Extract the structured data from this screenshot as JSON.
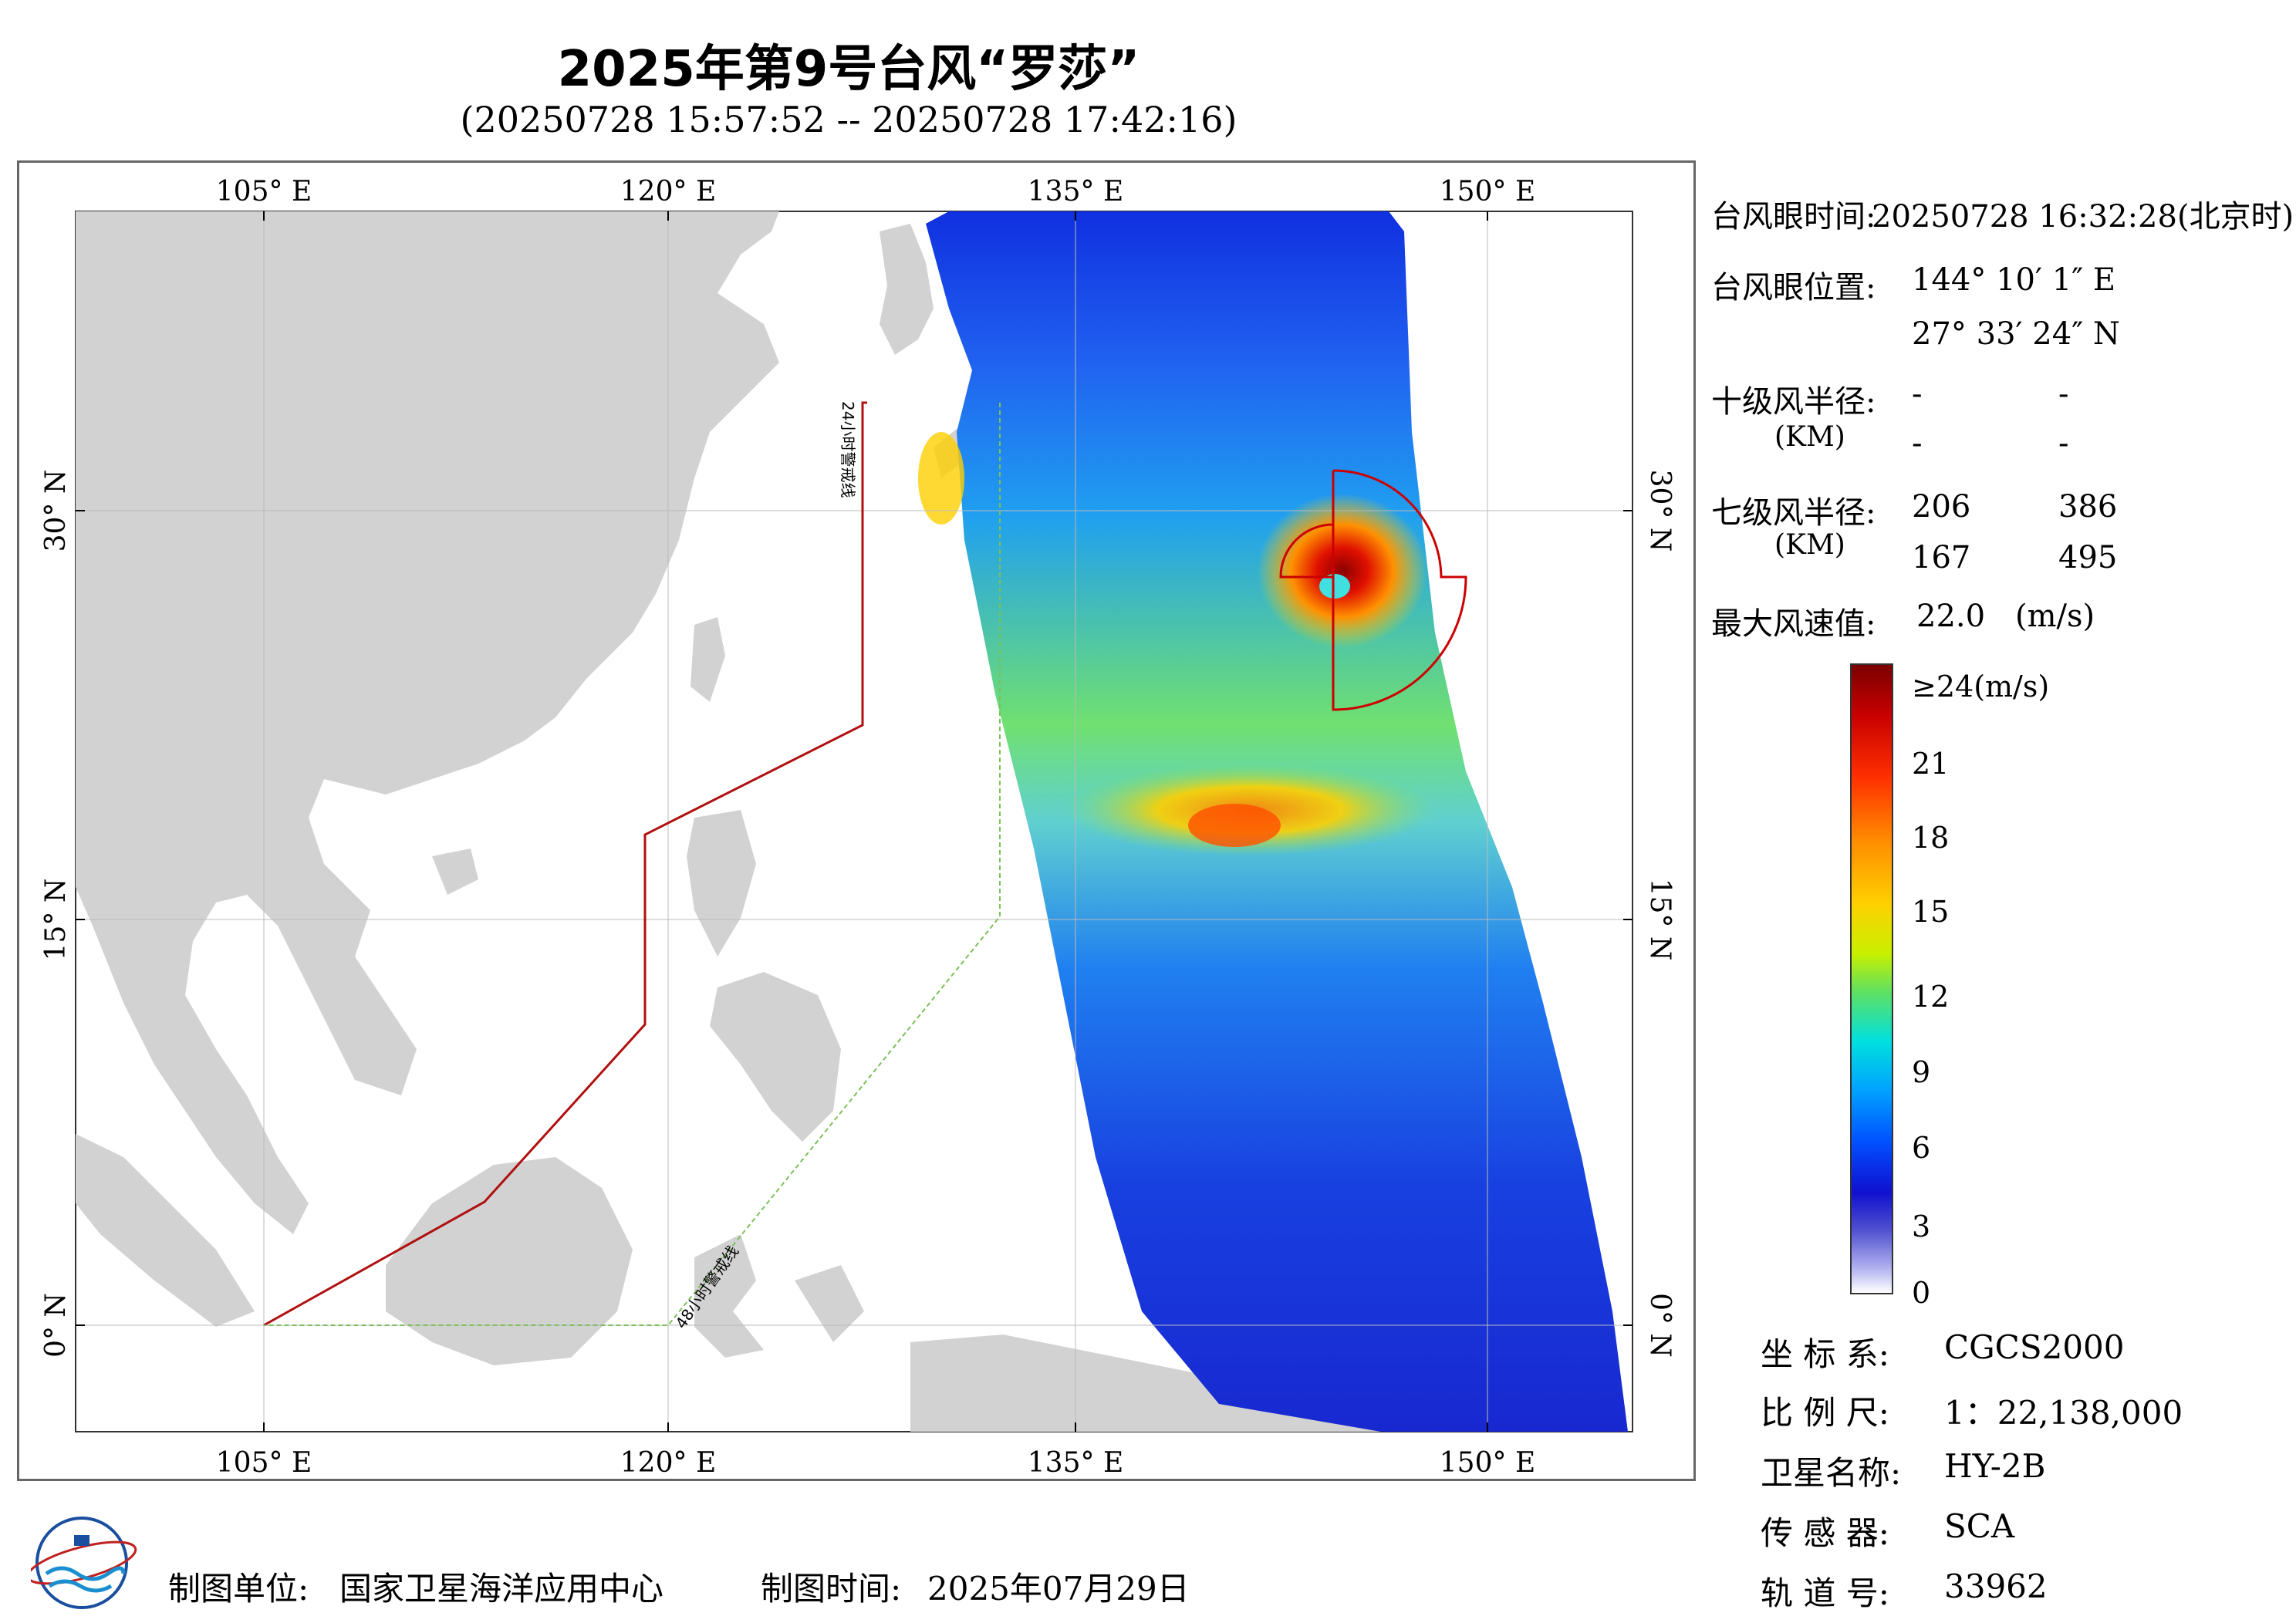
{
  "title": "2025年第9号台风“罗莎”",
  "subtitle": "(20250728 15:57:52 -- 20250728 17:42:16)",
  "map": {
    "lon_ticks": [
      "105° E",
      "120° E",
      "135° E",
      "150° E"
    ],
    "lat_ticks": [
      "0° N",
      "15° N",
      "30° N"
    ],
    "line_24h_label": "24小时警戒线",
    "line_48h_label": "48小时警戒线",
    "colors": {
      "land": "#d2d2d2",
      "sea": "#ffffff",
      "line_24h": "#b01010",
      "line_48h": "#7cc05a",
      "radius_line": "#cc0000"
    }
  },
  "info": {
    "eye_time_label": "台风眼时间:",
    "eye_time_value": "20250728 16:32:28(北京时)",
    "eye_pos_label": "台风眼位置:",
    "eye_lon": "144° 10′ 1″ E",
    "eye_lat": "27° 33′ 24″ N",
    "r10_label": "十级风半径:",
    "r10_unit": "(KM)",
    "r10_values": [
      "-",
      "-",
      "-",
      "-"
    ],
    "r7_label": "七级风半径:",
    "r7_unit": "(KM)",
    "r7_values": [
      "206",
      "386",
      "167",
      "495"
    ],
    "max_wind_label": "最大风速值:",
    "max_wind_value": "22.0",
    "max_wind_unit": "(m/s)"
  },
  "colorbar": {
    "labels": [
      "≥24(m/s)",
      "21",
      "18",
      "15",
      "12",
      "9",
      "6",
      "3",
      "0"
    ],
    "colors": [
      "#7a0000",
      "#c80000",
      "#ff3000",
      "#ff8c00",
      "#ffd000",
      "#c8f000",
      "#60e060",
      "#00e0e0",
      "#00a0ff",
      "#0050ff",
      "#1010d0",
      "#5050d0",
      "#b0b0f0",
      "#ffffff"
    ]
  },
  "meta": {
    "crs_label": "坐 标 系:",
    "crs_value": "CGCS2000",
    "scale_label": "比 例 尺:",
    "scale_value": "1：22,138,000",
    "satellite_label": "卫星名称:",
    "satellite_value": "HY-2B",
    "sensor_label": "传 感 器:",
    "sensor_value": "SCA",
    "orbit_label": "轨 道 号:",
    "orbit_value": "33962"
  },
  "footer": {
    "producer_label": "制图单位:",
    "producer_value": "国家卫星海洋应用中心",
    "date_label": "制图时间:",
    "date_value": "2025年07月29日"
  }
}
